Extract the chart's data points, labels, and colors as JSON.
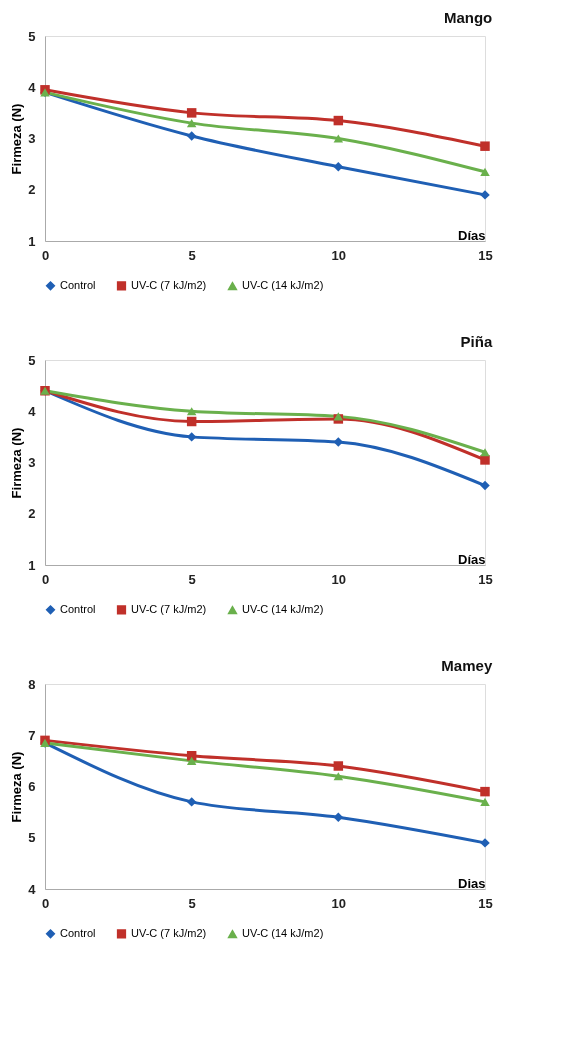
{
  "chart_data": [
    {
      "type": "line",
      "title": "Mango",
      "xlabel": "Días",
      "ylabel": "Firmeza (N)",
      "x": [
        0,
        5,
        10,
        15
      ],
      "xlim": [
        0,
        15
      ],
      "xticks": [
        0,
        5,
        10,
        15
      ],
      "ylim": [
        1,
        5
      ],
      "yticks": [
        1,
        2,
        3,
        4,
        5
      ],
      "grid": false,
      "legend": "bottom",
      "line_style": "solid",
      "series": [
        {
          "name": "Control",
          "color": "#1f5fb4",
          "marker": "diamond",
          "values": [
            3.9,
            3.05,
            2.45,
            1.9
          ]
        },
        {
          "name": "UV-C (7 kJ/m2)",
          "color": "#c0302a",
          "marker": "square",
          "values": [
            3.95,
            3.5,
            3.35,
            2.85
          ]
        },
        {
          "name": "UV-C (14 kJ/m2)",
          "color": "#6ab04c",
          "marker": "triangle",
          "values": [
            3.9,
            3.3,
            3.0,
            2.35
          ]
        }
      ]
    },
    {
      "type": "line",
      "title": "Piña",
      "xlabel": "Días",
      "ylabel": "Firmeza (N)",
      "x": [
        0,
        5,
        10,
        15
      ],
      "xlim": [
        0,
        15
      ],
      "xticks": [
        0,
        5,
        10,
        15
      ],
      "ylim": [
        1,
        5
      ],
      "yticks": [
        1,
        2,
        3,
        4,
        5
      ],
      "grid": false,
      "legend": "bottom",
      "line_style": "solid",
      "series": [
        {
          "name": "Control",
          "color": "#1f5fb4",
          "marker": "diamond",
          "values": [
            4.4,
            3.5,
            3.4,
            2.55
          ]
        },
        {
          "name": "UV-C (7 kJ/m2)",
          "color": "#c0302a",
          "marker": "square",
          "values": [
            4.4,
            3.8,
            3.85,
            3.05
          ]
        },
        {
          "name": "UV-C (14 kJ/m2)",
          "color": "#6ab04c",
          "marker": "triangle",
          "values": [
            4.4,
            4.0,
            3.9,
            3.2
          ]
        }
      ]
    },
    {
      "type": "line",
      "title": "Mamey",
      "xlabel": "Dias",
      "ylabel": "Firmeza (N)",
      "x": [
        0,
        5,
        10,
        15
      ],
      "xlim": [
        0,
        15
      ],
      "xticks": [
        0,
        5,
        10,
        15
      ],
      "ylim": [
        4,
        8
      ],
      "yticks": [
        4,
        5,
        6,
        7,
        8
      ],
      "grid": false,
      "legend": "bottom",
      "line_style": "solid",
      "series": [
        {
          "name": "Control",
          "color": "#1f5fb4",
          "marker": "diamond",
          "values": [
            6.85,
            5.7,
            5.4,
            4.9
          ]
        },
        {
          "name": "UV-C (7 kJ/m2)",
          "color": "#c0302a",
          "marker": "square",
          "values": [
            6.9,
            6.6,
            6.4,
            5.9
          ]
        },
        {
          "name": "UV-C (14 kJ/m2)",
          "color": "#6ab04c",
          "marker": "triangle",
          "values": [
            6.85,
            6.5,
            6.2,
            5.7
          ]
        }
      ]
    }
  ]
}
